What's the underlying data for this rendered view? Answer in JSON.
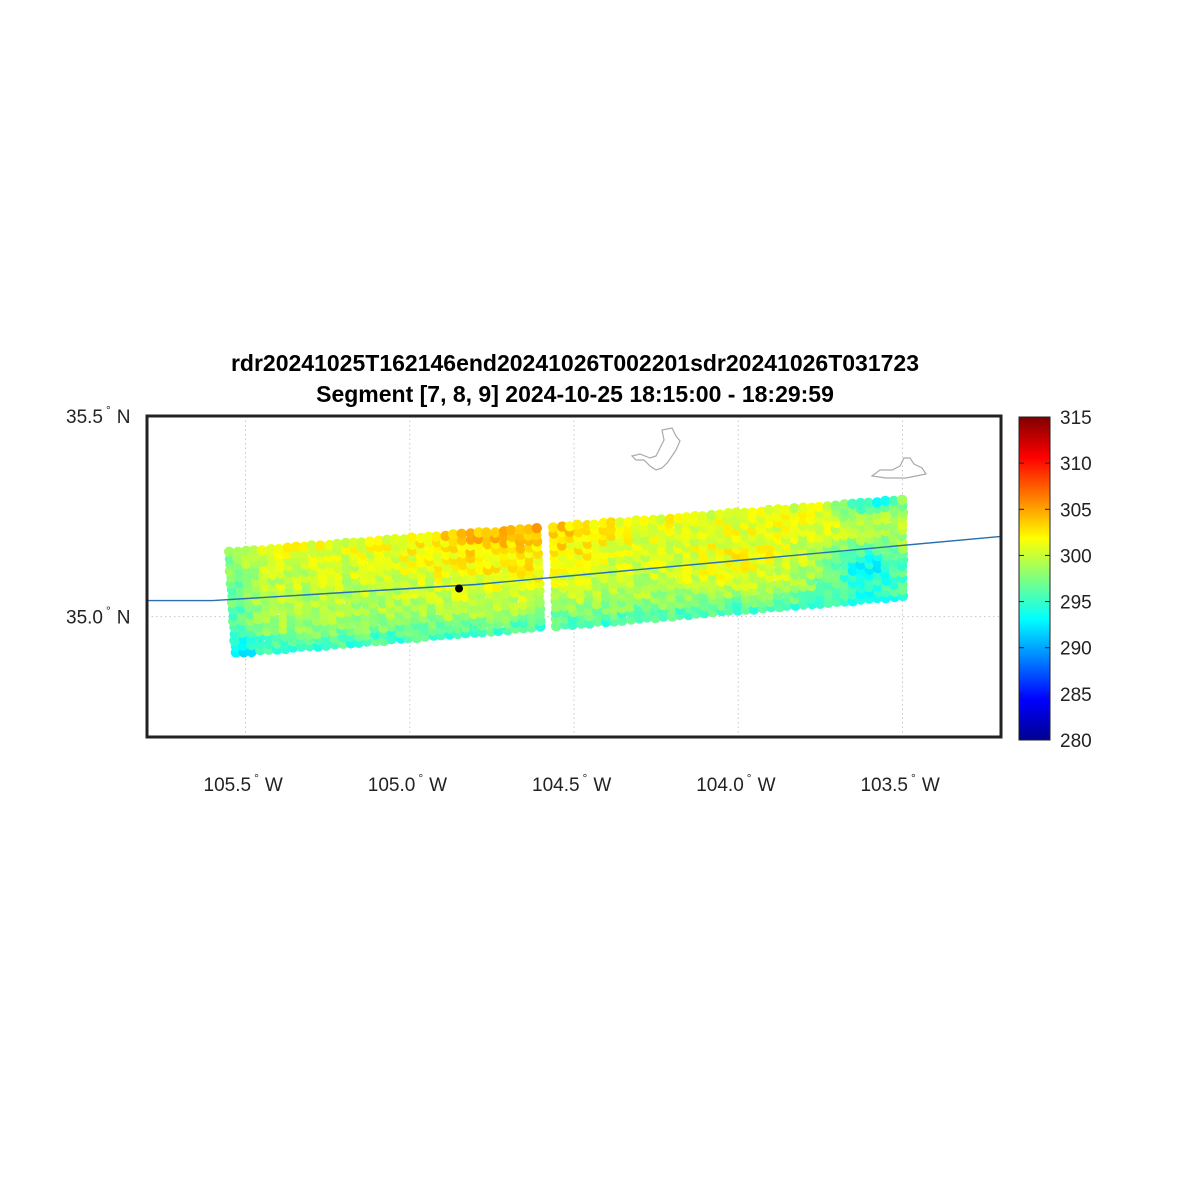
{
  "title": {
    "line1": "rdr20241025T162146end20241026T002201sdr20241026T031723",
    "line2": "Segment [7, 8, 9] 2024-10-25 18:15:00 - 18:29:59"
  },
  "map": {
    "lon_range": [
      -105.8,
      -103.2
    ],
    "lat_range": [
      34.7,
      35.5
    ],
    "x_ticks": [
      {
        "lon": -105.5,
        "value": "105.5",
        "hemi": "W"
      },
      {
        "lon": -105.0,
        "value": "105.0",
        "hemi": "W"
      },
      {
        "lon": -104.5,
        "value": "104.5",
        "hemi": "W"
      },
      {
        "lon": -104.0,
        "value": "104.0",
        "hemi": "W"
      },
      {
        "lon": -103.5,
        "value": "103.5",
        "hemi": "W"
      }
    ],
    "y_ticks": [
      {
        "lat": 35.5,
        "value": "35.5",
        "hemi": "N"
      },
      {
        "lat": 35.0,
        "value": "35.0",
        "hemi": "N"
      }
    ],
    "degree_symbol": "°",
    "grid": "dotted",
    "swath_corners": {
      "lower_left": [
        -105.53,
        34.91
      ],
      "upper_left": [
        -105.55,
        35.16
      ],
      "upper_right": [
        -103.5,
        35.29
      ],
      "lower_right": [
        -103.5,
        35.05
      ]
    },
    "swath_gap_fraction": 0.47,
    "marker": {
      "lon": -104.85,
      "lat": 35.07,
      "color": "#000000"
    },
    "track_line": {
      "color": "#2a6fb0",
      "points": [
        [
          -105.8,
          35.04
        ],
        [
          -105.6,
          35.04
        ],
        [
          -105.2,
          35.06
        ],
        [
          -104.8,
          35.08
        ],
        [
          -104.4,
          35.11
        ],
        [
          -104.0,
          35.14
        ],
        [
          -103.6,
          35.17
        ],
        [
          -103.2,
          35.2
        ]
      ]
    }
  },
  "colorbar": {
    "min": 280,
    "max": 315,
    "tick_labels": [
      "315",
      "310",
      "305",
      "300",
      "295",
      "290",
      "285",
      "280"
    ],
    "colormap": "jet"
  },
  "colors": {
    "frame": "#222222",
    "lake_outline": "#aaaaaa"
  }
}
